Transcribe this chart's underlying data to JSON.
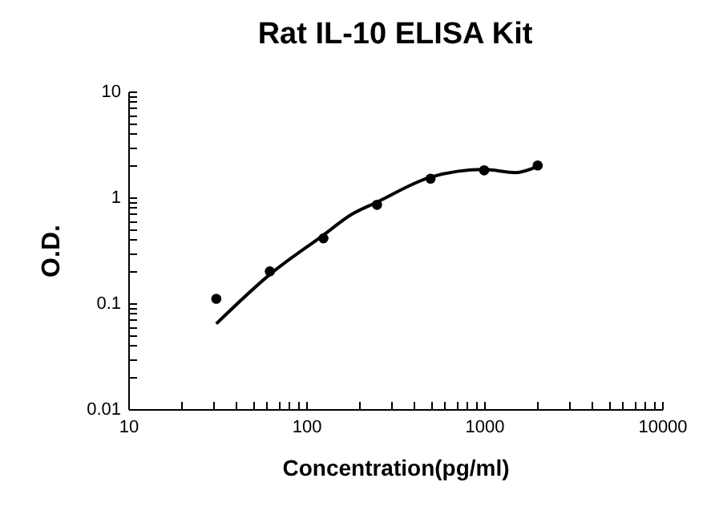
{
  "chart_data": {
    "type": "scatter",
    "title": "Rat IL-10 ELISA Kit",
    "xlabel": "Concentration(pg/ml)",
    "ylabel": "O.D.",
    "log": "xy",
    "marker": "circle",
    "grid": false,
    "xlim": [
      10,
      10000
    ],
    "ylim": [
      0.01,
      10
    ],
    "xticks": [
      10,
      {
        "value": 20,
        "label": null
      },
      {
        "value": 30,
        "label": null
      },
      {
        "value": 40,
        "label": null
      },
      {
        "value": 50,
        "label": null
      },
      {
        "value": 60,
        "label": null
      },
      {
        "value": 70,
        "label": null
      },
      {
        "value": 80,
        "label": null
      },
      {
        "value": 90,
        "label": null
      },
      100,
      {
        "value": 200,
        "label": null
      },
      {
        "value": 300,
        "label": null
      },
      {
        "value": 400,
        "label": null
      },
      {
        "value": 500,
        "label": null
      },
      {
        "value": 600,
        "label": null
      },
      {
        "value": 700,
        "label": null
      },
      {
        "value": 800,
        "label": null
      },
      {
        "value": 900,
        "label": null
      },
      1000,
      {
        "value": 2000,
        "label": null
      },
      {
        "value": 3000,
        "label": null
      },
      {
        "value": 4000,
        "label": null
      },
      {
        "value": 5000,
        "label": null
      },
      {
        "value": 6000,
        "label": null
      },
      {
        "value": 7000,
        "label": null
      },
      {
        "value": 8000,
        "label": null
      },
      {
        "value": 9000,
        "label": null
      },
      10000
    ],
    "yticks": [
      0.01,
      {
        "value": 0.02,
        "label": null
      },
      {
        "value": 0.03,
        "label": null
      },
      {
        "value": 0.04,
        "label": null
      },
      {
        "value": 0.05,
        "label": null
      },
      {
        "value": 0.06,
        "label": null
      },
      {
        "value": 0.07,
        "label": null
      },
      {
        "value": 0.08,
        "label": null
      },
      {
        "value": 0.09,
        "label": null
      },
      0.1,
      {
        "value": 0.2,
        "label": null
      },
      {
        "value": 0.3,
        "label": null
      },
      {
        "value": 0.4,
        "label": null
      },
      {
        "value": 0.5,
        "label": null
      },
      {
        "value": 0.6,
        "label": null
      },
      {
        "value": 0.7,
        "label": null
      },
      {
        "value": 0.8,
        "label": null
      },
      {
        "value": 0.9,
        "label": null
      },
      1,
      {
        "value": 2,
        "label": null
      },
      {
        "value": 3,
        "label": null
      },
      {
        "value": 4,
        "label": null
      },
      {
        "value": 5,
        "label": null
      },
      {
        "value": 6,
        "label": null
      },
      {
        "value": 7,
        "label": null
      },
      {
        "value": 8,
        "label": null
      },
      {
        "value": 9,
        "label": null
      },
      10
    ],
    "series": [
      {
        "color": "#000000",
        "x": [
          31.25,
          62.5,
          125,
          250,
          500,
          1000,
          2000
        ],
        "values": [
          0.11,
          0.2,
          0.41,
          0.85,
          1.5,
          1.8,
          2.0
        ]
      },
      {
        "type": "line",
        "color": "#000000",
        "line_style": "solid",
        "marker": "none",
        "x": [
          31.25,
          62.5,
          125,
          180,
          250,
          500,
          1000,
          1500,
          2000
        ],
        "values": [
          0.064,
          0.187,
          0.44,
          0.69,
          0.9,
          1.55,
          1.83,
          1.71,
          1.96
        ]
      }
    ]
  }
}
